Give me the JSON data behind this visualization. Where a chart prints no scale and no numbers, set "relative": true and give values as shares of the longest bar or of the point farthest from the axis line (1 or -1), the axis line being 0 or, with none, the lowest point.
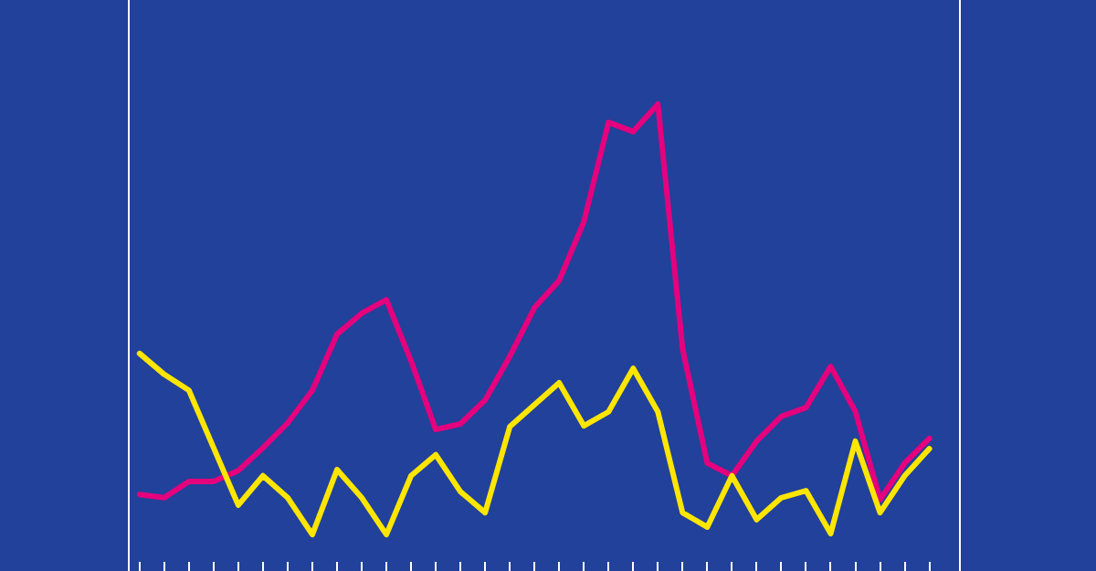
{
  "chart_data": {
    "type": "line",
    "relative": true,
    "marker": "none",
    "line_style": "solid",
    "categories": [
      null,
      null,
      null,
      null,
      null,
      null,
      null,
      null,
      null,
      null,
      null,
      null,
      null,
      null,
      null,
      null,
      null,
      null,
      null,
      null,
      null,
      null,
      null,
      null,
      null,
      null,
      null,
      null,
      null,
      null,
      null,
      null,
      null
    ],
    "series": [
      {
        "color": "#e5007e",
        "values": [
          0.164,
          0.157,
          0.192,
          0.192,
          0.215,
          0.264,
          0.317,
          0.387,
          0.507,
          0.552,
          0.581,
          0.45,
          0.303,
          0.315,
          0.366,
          0.46,
          0.564,
          0.622,
          0.748,
          0.961,
          0.941,
          1,
          0.476,
          0.231,
          0.204,
          0.278,
          0.331,
          0.35,
          0.438,
          0.342,
          0.153,
          0.231,
          0.284
        ]
      },
      {
        "color": "#ffe600",
        "values": [
          0.466,
          0.421,
          0.387,
          0.264,
          0.141,
          0.204,
          0.157,
          0.078,
          0.217,
          0.157,
          0.078,
          0.204,
          0.249,
          0.17,
          0.125,
          0.309,
          0.356,
          0.403,
          0.311,
          0.341,
          0.434,
          0.341,
          0.125,
          0.094,
          0.204,
          0.11,
          0.157,
          0.172,
          0.08,
          0.278,
          0.125,
          0.204,
          0.262
        ]
      }
    ]
  }
}
